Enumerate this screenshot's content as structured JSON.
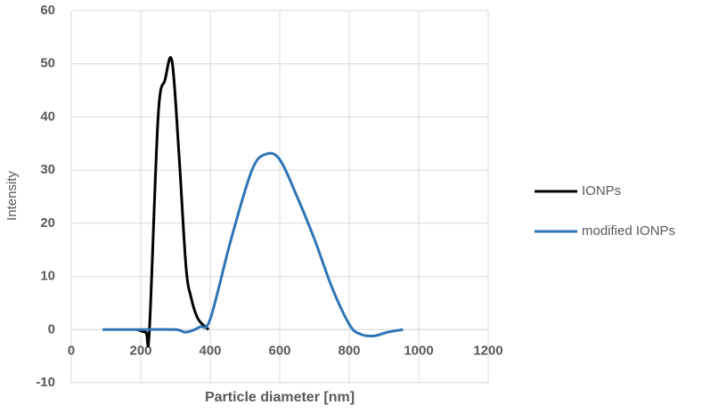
{
  "chart_data": {
    "type": "line",
    "x_label": "Particle diameter [nm]",
    "y_label": "Intensity",
    "xlim": [
      0,
      1200
    ],
    "xticks": [
      0,
      200,
      400,
      600,
      800,
      1000,
      1200
    ],
    "ylim": [
      -10,
      60
    ],
    "yticks": [
      -10,
      0,
      10,
      20,
      30,
      40,
      50,
      60
    ],
    "grid": true,
    "legend": "right",
    "series": [
      {
        "name": "IONPs",
        "color": "#000000",
        "x": [
          190,
          215,
          225,
          250,
          270,
          290,
          310,
          330,
          345,
          365,
          395
        ],
        "values": [
          0,
          -0.5,
          0,
          40,
          47,
          50.5,
          33,
          12,
          6,
          2,
          0
        ]
      },
      {
        "name": "modified IONPs",
        "color": "#2e75b6",
        "x": [
          90,
          200,
          300,
          330,
          370,
          400,
          460,
          520,
          560,
          600,
          650,
          700,
          750,
          800,
          830,
          870,
          910,
          955
        ],
        "values": [
          0,
          0,
          0,
          -0.5,
          0.5,
          2,
          17,
          30,
          33,
          32,
          25,
          17,
          8,
          1,
          -0.8,
          -1.2,
          -0.5,
          0
        ]
      }
    ]
  }
}
